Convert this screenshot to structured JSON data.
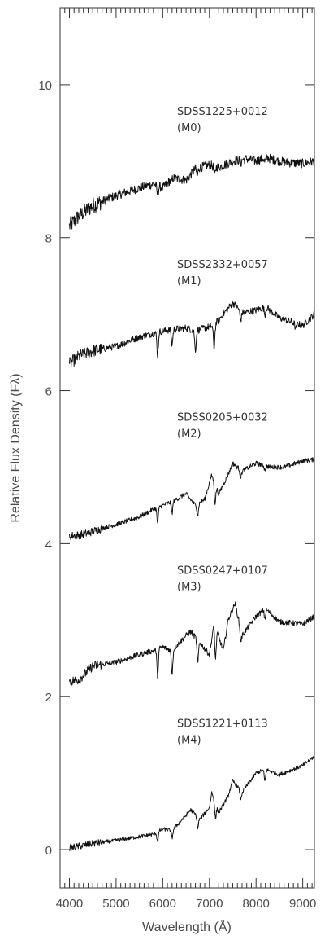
{
  "chart_data": {
    "type": "line",
    "xlabel": "Wavelength (Å)",
    "ylabel": "Relative Flux Density (Fλ)",
    "xlim": [
      3800,
      9250
    ],
    "ylim": [
      -0.5,
      11
    ],
    "x_ticks": [
      4000,
      5000,
      6000,
      7000,
      8000,
      9000
    ],
    "x_tick_labels": [
      "4000",
      "5000",
      "6000",
      "7000",
      "8000",
      "9000"
    ],
    "y_ticks": [
      0,
      2,
      4,
      6,
      8,
      10
    ],
    "y_tick_labels": [
      "0",
      "2",
      "4",
      "6",
      "8",
      "10"
    ],
    "grid": false,
    "series": [
      {
        "name": "SDSS1225+0012",
        "subtype": "(M0)",
        "offset": 8,
        "noise": 0.06,
        "points": [
          [
            4000,
            0.15
          ],
          [
            4200,
            0.28
          ],
          [
            4500,
            0.42
          ],
          [
            5000,
            0.55
          ],
          [
            5500,
            0.65
          ],
          [
            5800,
            0.7
          ],
          [
            6000,
            0.65
          ],
          [
            6200,
            0.78
          ],
          [
            6500,
            0.75
          ],
          [
            6700,
            0.9
          ],
          [
            7000,
            0.95
          ],
          [
            7200,
            0.92
          ],
          [
            7500,
            1.0
          ],
          [
            7800,
            1.03
          ],
          [
            8000,
            1.0
          ],
          [
            8200,
            1.05
          ],
          [
            8500,
            1.0
          ],
          [
            8700,
            0.98
          ],
          [
            9000,
            0.97
          ],
          [
            9250,
            1.0
          ]
        ],
        "dips": [
          [
            5890,
            0.12
          ],
          [
            6180,
            0.05
          ],
          [
            6740,
            0.1
          ],
          [
            7110,
            0.12
          ],
          [
            7670,
            0.05
          ],
          [
            8190,
            0.06
          ]
        ]
      },
      {
        "name": "SDSS2332+0057",
        "subtype": "(M1)",
        "offset": 6,
        "noise": 0.045,
        "points": [
          [
            4000,
            0.35
          ],
          [
            4200,
            0.45
          ],
          [
            4500,
            0.52
          ],
          [
            5000,
            0.58
          ],
          [
            5500,
            0.7
          ],
          [
            5800,
            0.75
          ],
          [
            6000,
            0.78
          ],
          [
            6200,
            0.8
          ],
          [
            6500,
            0.82
          ],
          [
            6700,
            0.78
          ],
          [
            6900,
            0.82
          ],
          [
            7100,
            0.85
          ],
          [
            7300,
            1.0
          ],
          [
            7500,
            1.15
          ],
          [
            7700,
            1.02
          ],
          [
            8000,
            1.05
          ],
          [
            8200,
            1.1
          ],
          [
            8500,
            0.95
          ],
          [
            9000,
            0.85
          ],
          [
            9250,
            1.0
          ]
        ],
        "dips": [
          [
            5890,
            0.3
          ],
          [
            6200,
            0.2
          ],
          [
            6700,
            0.25
          ],
          [
            7100,
            0.3
          ],
          [
            7670,
            0.12
          ],
          [
            8190,
            0.1
          ],
          [
            8850,
            0.08
          ]
        ]
      },
      {
        "name": "SDSS0205+0032",
        "subtype": "(M2)",
        "offset": 4,
        "noise": 0.03,
        "points": [
          [
            4000,
            0.1
          ],
          [
            4300,
            0.12
          ],
          [
            4700,
            0.2
          ],
          [
            5000,
            0.25
          ],
          [
            5500,
            0.35
          ],
          [
            5800,
            0.45
          ],
          [
            6000,
            0.5
          ],
          [
            6200,
            0.55
          ],
          [
            6500,
            0.65
          ],
          [
            6700,
            0.5
          ],
          [
            6900,
            0.58
          ],
          [
            7050,
            0.9
          ],
          [
            7200,
            0.65
          ],
          [
            7400,
            0.9
          ],
          [
            7500,
            1.05
          ],
          [
            7700,
            0.95
          ],
          [
            8000,
            1.05
          ],
          [
            8300,
            1.0
          ],
          [
            8600,
            1.0
          ],
          [
            9000,
            1.08
          ],
          [
            9250,
            1.1
          ]
        ],
        "dips": [
          [
            5890,
            0.2
          ],
          [
            6200,
            0.15
          ],
          [
            6750,
            0.15
          ],
          [
            7120,
            0.25
          ],
          [
            7670,
            0.1
          ],
          [
            8190,
            0.05
          ]
        ]
      },
      {
        "name": "SDSS0247+0107",
        "subtype": "(M3)",
        "offset": 2,
        "noise": 0.035,
        "points": [
          [
            4000,
            0.2
          ],
          [
            4200,
            0.22
          ],
          [
            4500,
            0.4
          ],
          [
            5000,
            0.45
          ],
          [
            5500,
            0.55
          ],
          [
            5800,
            0.6
          ],
          [
            6000,
            0.65
          ],
          [
            6200,
            0.6
          ],
          [
            6500,
            0.8
          ],
          [
            6600,
            0.85
          ],
          [
            6800,
            0.7
          ],
          [
            7000,
            0.55
          ],
          [
            7100,
            0.95
          ],
          [
            7300,
            0.6
          ],
          [
            7400,
            1.0
          ],
          [
            7550,
            1.22
          ],
          [
            7700,
            0.8
          ],
          [
            8000,
            1.05
          ],
          [
            8200,
            1.15
          ],
          [
            8500,
            0.98
          ],
          [
            9000,
            0.95
          ],
          [
            9250,
            1.05
          ]
        ],
        "dips": [
          [
            5890,
            0.35
          ],
          [
            6200,
            0.3
          ],
          [
            6750,
            0.3
          ],
          [
            7130,
            0.4
          ],
          [
            7670,
            0.15
          ],
          [
            8190,
            0.12
          ]
        ]
      },
      {
        "name": "SDSS1221+0113",
        "subtype": "(M4)",
        "offset": 0,
        "noise": 0.025,
        "points": [
          [
            4000,
            0.02
          ],
          [
            4500,
            0.08
          ],
          [
            5000,
            0.12
          ],
          [
            5500,
            0.17
          ],
          [
            5800,
            0.2
          ],
          [
            6000,
            0.27
          ],
          [
            6200,
            0.25
          ],
          [
            6500,
            0.45
          ],
          [
            6600,
            0.52
          ],
          [
            6800,
            0.4
          ],
          [
            7000,
            0.55
          ],
          [
            7050,
            0.75
          ],
          [
            7200,
            0.48
          ],
          [
            7400,
            0.7
          ],
          [
            7500,
            0.9
          ],
          [
            7700,
            0.75
          ],
          [
            8000,
            1.0
          ],
          [
            8200,
            1.05
          ],
          [
            8500,
            0.98
          ],
          [
            8800,
            1.05
          ],
          [
            9000,
            1.1
          ],
          [
            9250,
            1.22
          ]
        ],
        "dips": [
          [
            5890,
            0.12
          ],
          [
            6200,
            0.1
          ],
          [
            6750,
            0.15
          ],
          [
            7130,
            0.2
          ],
          [
            7670,
            0.12
          ],
          [
            8190,
            0.15
          ]
        ]
      }
    ]
  }
}
